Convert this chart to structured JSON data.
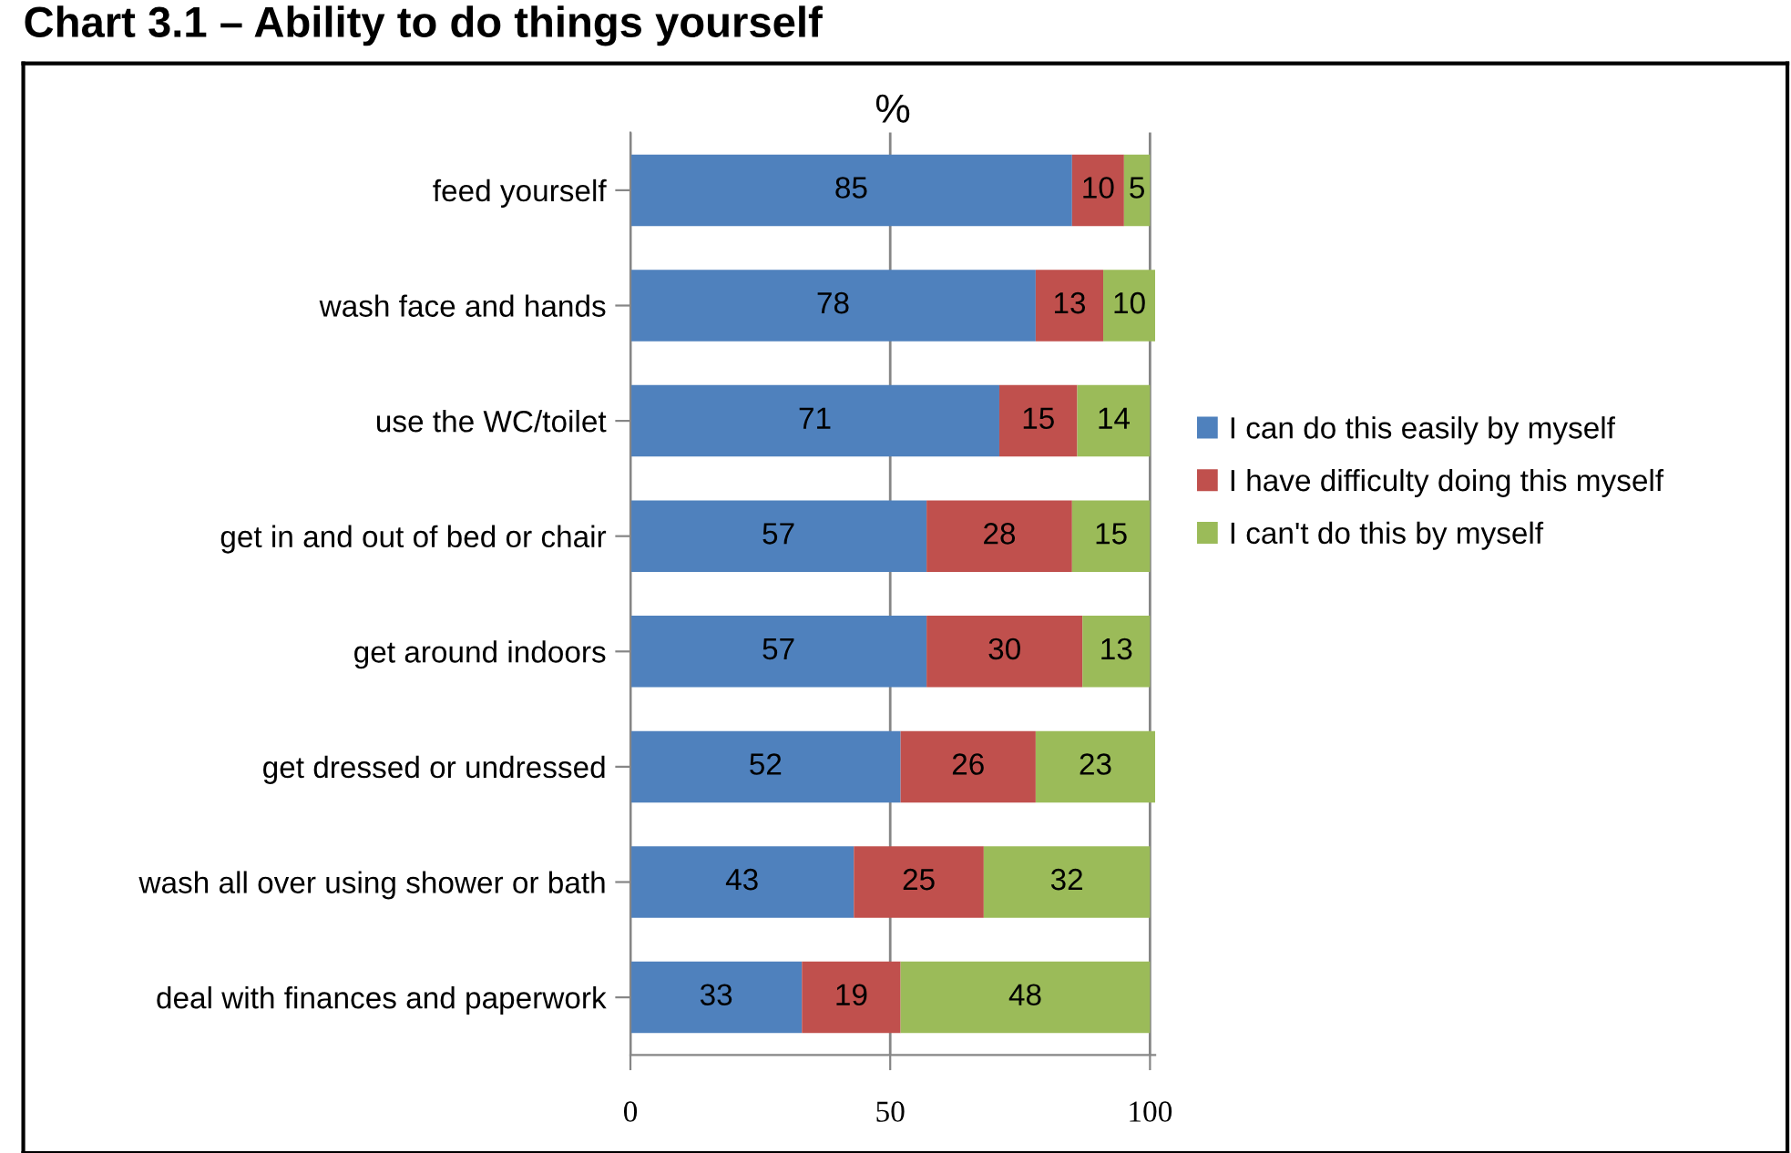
{
  "chart_data": {
    "type": "bar",
    "orientation": "horizontal",
    "stacked": true,
    "title": "Chart 3.1 – Ability to do things yourself",
    "xlabel": "%",
    "categories": [
      "feed yourself",
      "wash face and hands",
      "use the WC/toilet",
      "get in and out of bed or chair",
      "get around indoors",
      "get dressed or undressed",
      "wash all over using shower or bath",
      "deal with finances and paperwork"
    ],
    "series": [
      {
        "name": "I can do this easily by myself",
        "color": "#4f81bd",
        "values": [
          85,
          78,
          71,
          57,
          57,
          52,
          43,
          33
        ]
      },
      {
        "name": "I have difficulty doing this myself",
        "color": "#c0504d",
        "values": [
          10,
          13,
          15,
          28,
          30,
          26,
          25,
          19
        ]
      },
      {
        "name": "I can't do this by myself",
        "color": "#9bbb59",
        "values": [
          5,
          10,
          14,
          15,
          13,
          23,
          32,
          48
        ]
      }
    ],
    "xlim": [
      0,
      101
    ],
    "xticks": [
      0,
      50,
      100
    ],
    "grid": "x",
    "legend": "right",
    "data_labels": true
  }
}
